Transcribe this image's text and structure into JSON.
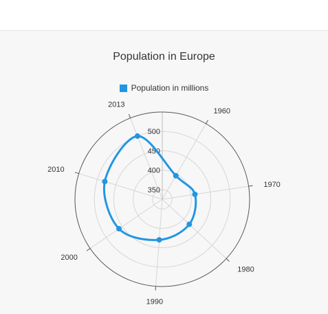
{
  "chart_data": {
    "type": "line",
    "subtype": "polar",
    "title": "Population in Europe",
    "categories": [
      "1960",
      "1970",
      "1980",
      "1990",
      "2000",
      "2010",
      "2013"
    ],
    "series": [
      {
        "name": "Population in millions",
        "color": "#2196e3",
        "values": [
          395,
          410,
          420,
          430,
          460,
          480,
          500
        ]
      }
    ],
    "radial_axis": {
      "min": 325,
      "max": 550,
      "ticks": [
        350,
        400,
        450,
        500
      ]
    },
    "legend": "top-center",
    "grid": true
  }
}
